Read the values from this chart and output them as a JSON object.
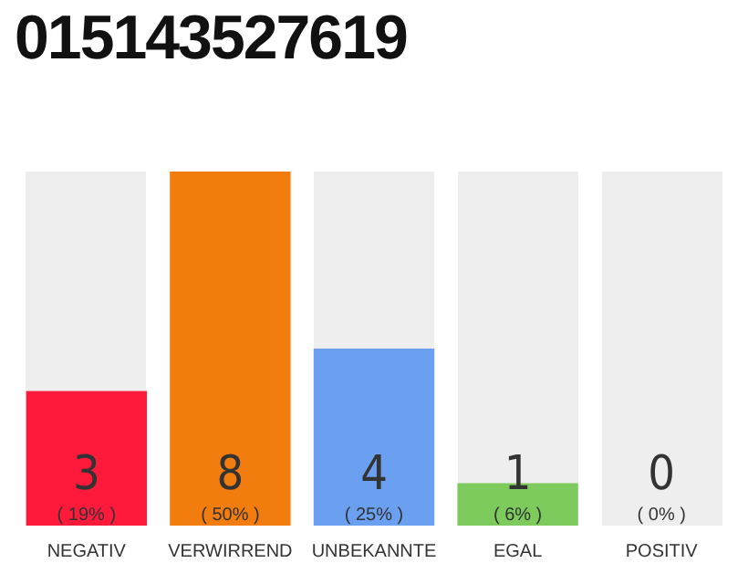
{
  "chart_data": {
    "type": "bar",
    "title": "015143527619",
    "categories": [
      "NEGATIV",
      "VERWIRREND",
      "UNBEKANNTE",
      "EGAL",
      "POSITIV"
    ],
    "values": [
      19,
      50,
      25,
      6,
      0
    ],
    "colors": [
      "#ff1a3c",
      "#f27c0e",
      "#6aa0ef",
      "#7ccb5c",
      "#e8e8e8"
    ],
    "value_labels": [
      "( 19% )",
      "( 50% )",
      "( 25% )",
      "( 6% )",
      "( 0% )"
    ],
    "annotations": [
      "3",
      "8",
      "4",
      "1",
      "0"
    ],
    "grid": false,
    "legend": false
  }
}
